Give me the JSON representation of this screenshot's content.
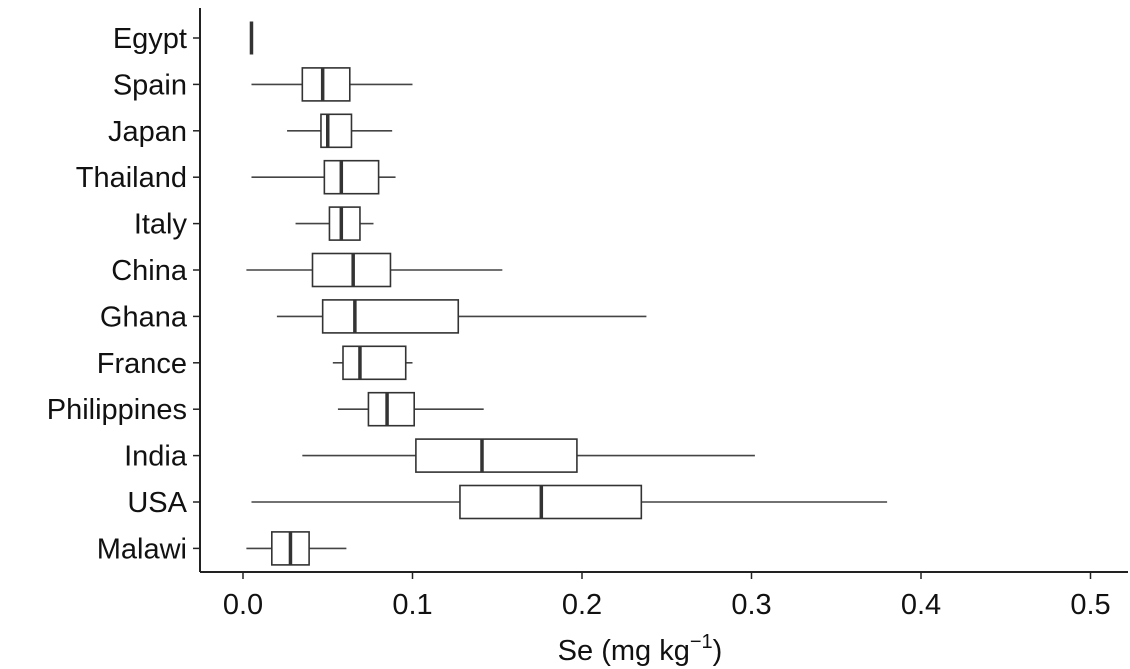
{
  "chart_data": {
    "type": "boxplot",
    "orientation": "horizontal",
    "xlabel": "Se (mg kg",
    "xlabel_superscript": "−1",
    "xlabel_suffix": ")",
    "xlim": [
      -0.025,
      0.525
    ],
    "xticks": [
      0.0,
      0.1,
      0.2,
      0.3,
      0.4,
      0.5
    ],
    "xtick_labels": [
      "0.0",
      "0.1",
      "0.2",
      "0.3",
      "0.4",
      "0.5"
    ],
    "grid": false,
    "categories": [
      "Egypt",
      "Spain",
      "Japan",
      "Thailand",
      "Italy",
      "China",
      "Ghana",
      "France",
      "Philippines",
      "India",
      "USA",
      "Malawi"
    ],
    "boxes": [
      {
        "label": "Egypt",
        "min": 0.005,
        "q1": 0.005,
        "median": 0.005,
        "q3": 0.005,
        "max": 0.005
      },
      {
        "label": "Spain",
        "min": 0.005,
        "q1": 0.035,
        "median": 0.047,
        "q3": 0.063,
        "max": 0.1
      },
      {
        "label": "Japan",
        "min": 0.026,
        "q1": 0.046,
        "median": 0.05,
        "q3": 0.064,
        "max": 0.088
      },
      {
        "label": "Thailand",
        "min": 0.005,
        "q1": 0.048,
        "median": 0.058,
        "q3": 0.08,
        "max": 0.09
      },
      {
        "label": "Italy",
        "min": 0.031,
        "q1": 0.051,
        "median": 0.058,
        "q3": 0.069,
        "max": 0.077
      },
      {
        "label": "China",
        "min": 0.002,
        "q1": 0.041,
        "median": 0.065,
        "q3": 0.087,
        "max": 0.153
      },
      {
        "label": "Ghana",
        "min": 0.02,
        "q1": 0.047,
        "median": 0.066,
        "q3": 0.127,
        "max": 0.238
      },
      {
        "label": "France",
        "min": 0.053,
        "q1": 0.059,
        "median": 0.069,
        "q3": 0.096,
        "max": 0.1
      },
      {
        "label": "Philippines",
        "min": 0.056,
        "q1": 0.074,
        "median": 0.085,
        "q3": 0.101,
        "max": 0.142
      },
      {
        "label": "India",
        "min": 0.035,
        "q1": 0.102,
        "median": 0.141,
        "q3": 0.197,
        "max": 0.302
      },
      {
        "label": "USA",
        "min": 0.005,
        "q1": 0.128,
        "median": 0.176,
        "q3": 0.235,
        "max": 0.38
      },
      {
        "label": "Malawi",
        "min": 0.002,
        "q1": 0.017,
        "median": 0.028,
        "q3": 0.039,
        "max": 0.061
      }
    ]
  }
}
